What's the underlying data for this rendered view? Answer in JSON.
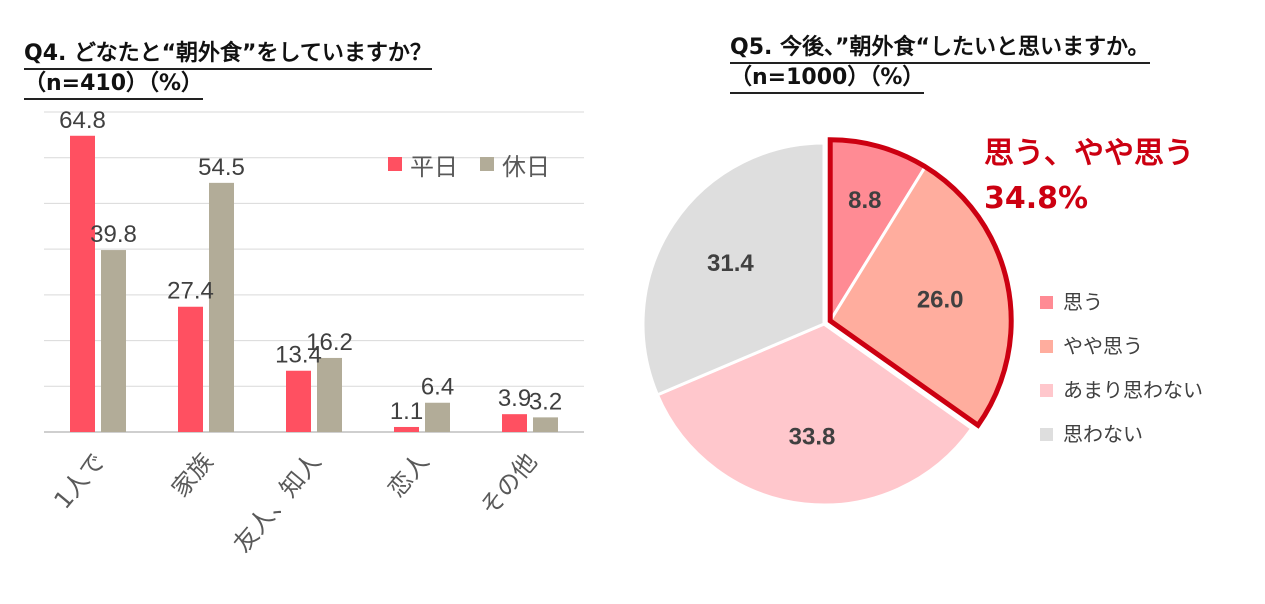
{
  "chart_data": [
    {
      "type": "bar",
      "title": "Q4. どなたと“朝外食”をしていますか？",
      "subtitle": "（n=410）（%）",
      "categories": [
        "1人で",
        "家族",
        "友人、知人",
        "恋人",
        "その他"
      ],
      "series": [
        {
          "name": "平日",
          "color": "#ff5061",
          "values": [
            64.8,
            27.4,
            13.4,
            1.1,
            3.9
          ]
        },
        {
          "name": "休日",
          "color": "#b2ac98",
          "values": [
            39.8,
            54.5,
            16.2,
            6.4,
            3.2
          ]
        }
      ],
      "ylim": [
        0,
        70
      ],
      "grid": true,
      "legend": "top-right"
    },
    {
      "type": "pie",
      "title": "Q5. 今後、”朝外食“したいと思いますか。",
      "subtitle": "（n=1000）（%）",
      "slices": [
        {
          "label": "思う",
          "value": 8.8,
          "color": "#ff8b94"
        },
        {
          "label": "やや思う",
          "value": 26.0,
          "color": "#ffad9e"
        },
        {
          "label": "あまり思わない",
          "value": 33.8,
          "color": "#ffc7cc"
        },
        {
          "label": "思わない",
          "value": 31.4,
          "color": "#dedede"
        }
      ],
      "highlight": {
        "text_line1": "思う、やや思う",
        "text_line2": "34.8%",
        "color": "#cc0011"
      },
      "legend": "right"
    }
  ]
}
